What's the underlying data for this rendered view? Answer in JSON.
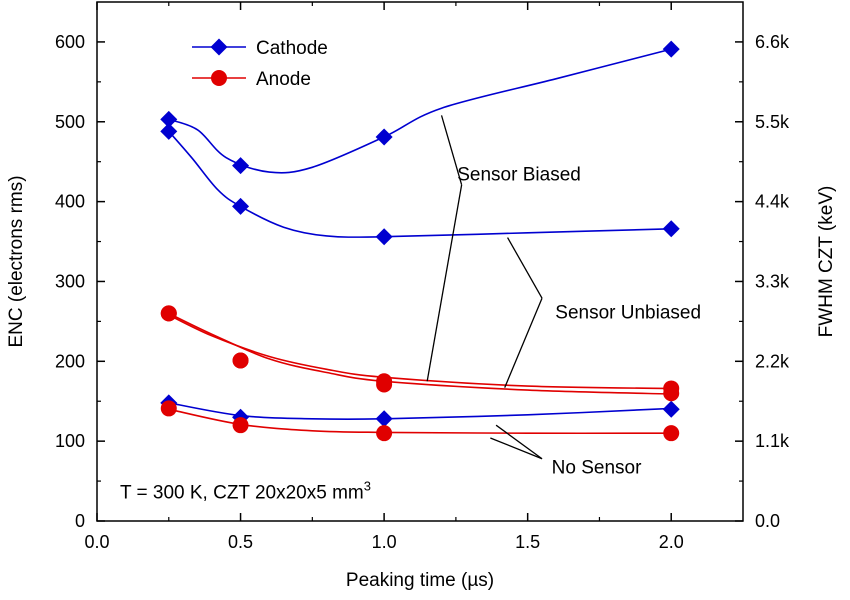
{
  "chart_data": {
    "type": "line",
    "xlabel": "Peaking time (µs)",
    "ylabel": "ENC (electrons rms)",
    "y2label": "FWHM CZT (keV)",
    "xlim": [
      0.0,
      2.25
    ],
    "ylim": [
      0,
      650
    ],
    "y2lim": [
      0,
      7150
    ],
    "x_ticks": [
      0.0,
      0.5,
      1.0,
      1.5,
      2.0
    ],
    "x_tick_labels": [
      "0.0",
      "0.5",
      "1.0",
      "1.5",
      "2.0"
    ],
    "y_ticks": [
      0,
      100,
      200,
      300,
      400,
      500,
      600
    ],
    "y_tick_labels": [
      "0",
      "100",
      "200",
      "300",
      "400",
      "500",
      "600"
    ],
    "y2_ticks": [
      0,
      1100,
      2200,
      3300,
      4400,
      5500,
      6600
    ],
    "y2_tick_labels": [
      "0.0",
      "1.1k",
      "2.2k",
      "3.3k",
      "4.4k",
      "5.5k",
      "6.6k"
    ],
    "grid": false,
    "legend_position": "top-left",
    "legend": [
      {
        "label": "Cathode",
        "marker": "diamond",
        "color": "#0000d0"
      },
      {
        "label": "Anode",
        "marker": "circle",
        "color": "#e00000"
      }
    ],
    "series": [
      {
        "group": "Cathode",
        "marker": "diamond",
        "color": "#0000d0",
        "x": [
          0.25,
          0.5,
          1.0,
          2.0
        ],
        "y": [
          503,
          445,
          481,
          591
        ],
        "curve": [
          [
            0.25,
            503
          ],
          [
            0.35,
            490
          ],
          [
            0.45,
            455
          ],
          [
            0.6,
            437
          ],
          [
            0.75,
            443
          ],
          [
            1.0,
            481
          ],
          [
            1.2,
            517
          ],
          [
            1.6,
            554
          ],
          [
            2.0,
            591
          ]
        ]
      },
      {
        "group": "Cathode",
        "marker": "diamond",
        "color": "#0000d0",
        "x": [
          0.25,
          0.5,
          1.0,
          2.0
        ],
        "y": [
          488,
          394,
          356,
          366
        ],
        "curve": [
          [
            0.25,
            488
          ],
          [
            0.33,
            455
          ],
          [
            0.42,
            415
          ],
          [
            0.5,
            394
          ],
          [
            0.65,
            368
          ],
          [
            0.8,
            357
          ],
          [
            1.0,
            356
          ],
          [
            1.5,
            361
          ],
          [
            2.0,
            366
          ]
        ]
      },
      {
        "group": "Cathode",
        "marker": "diamond",
        "color": "#0000d0",
        "x": [
          0.25,
          0.5,
          1.0,
          2.0
        ],
        "y": [
          148,
          130,
          128,
          140
        ],
        "curve": [
          [
            0.25,
            148
          ],
          [
            0.5,
            132
          ],
          [
            0.75,
            128
          ],
          [
            1.0,
            128
          ],
          [
            1.5,
            133
          ],
          [
            2.0,
            141
          ]
        ]
      },
      {
        "group": "Anode",
        "marker": "circle",
        "color": "#e00000",
        "x": [
          0.25,
          0.5,
          1.0,
          2.0
        ],
        "y": [
          260,
          201,
          175,
          166
        ],
        "curve": [
          [
            0.25,
            258
          ],
          [
            0.4,
            232
          ],
          [
            0.6,
            206
          ],
          [
            0.8,
            190
          ],
          [
            1.0,
            180
          ],
          [
            1.5,
            169
          ],
          [
            2.0,
            166
          ]
        ]
      },
      {
        "group": "Anode",
        "marker": "circle",
        "color": "#e00000",
        "x": [
          0.25,
          0.5,
          1.0,
          2.0
        ],
        "y": [
          260,
          201,
          171,
          160
        ],
        "curve": [
          [
            0.25,
            260
          ],
          [
            0.4,
            234
          ],
          [
            0.6,
            203
          ],
          [
            0.8,
            186
          ],
          [
            1.0,
            175
          ],
          [
            1.5,
            164
          ],
          [
            2.0,
            159
          ]
        ]
      },
      {
        "group": "Anode",
        "marker": "circle",
        "color": "#e00000",
        "x": [
          0.25,
          0.5,
          1.0,
          2.0
        ],
        "y": [
          141,
          120,
          110,
          110
        ],
        "curve": [
          [
            0.25,
            140
          ],
          [
            0.5,
            121
          ],
          [
            0.75,
            113
          ],
          [
            1.0,
            111
          ],
          [
            1.5,
            110
          ],
          [
            2.0,
            110
          ]
        ]
      }
    ],
    "annotations": [
      {
        "text": "Sensor Biased",
        "x": 1.47,
        "y": 434,
        "anchor": "middle",
        "leaders": [
          [
            1.27,
            421,
            1.2,
            508
          ],
          [
            1.27,
            421,
            1.15,
            175
          ]
        ]
      },
      {
        "text": "Sensor Unbiased",
        "x": 1.85,
        "y": 261,
        "anchor": "middle",
        "leaders": [
          [
            1.55,
            279,
            1.43,
            355
          ],
          [
            1.55,
            279,
            1.42,
            167
          ]
        ]
      },
      {
        "text": "No Sensor",
        "x": 1.74,
        "y": 67,
        "anchor": "middle",
        "leaders": [
          [
            1.55,
            78,
            1.39,
            120
          ],
          [
            1.55,
            78,
            1.37,
            104
          ]
        ]
      }
    ],
    "condition_label": {
      "main": "T = 300 K, CZT 20x20x5 mm",
      "superscript": "3",
      "x": 0.08,
      "y": 36
    }
  }
}
